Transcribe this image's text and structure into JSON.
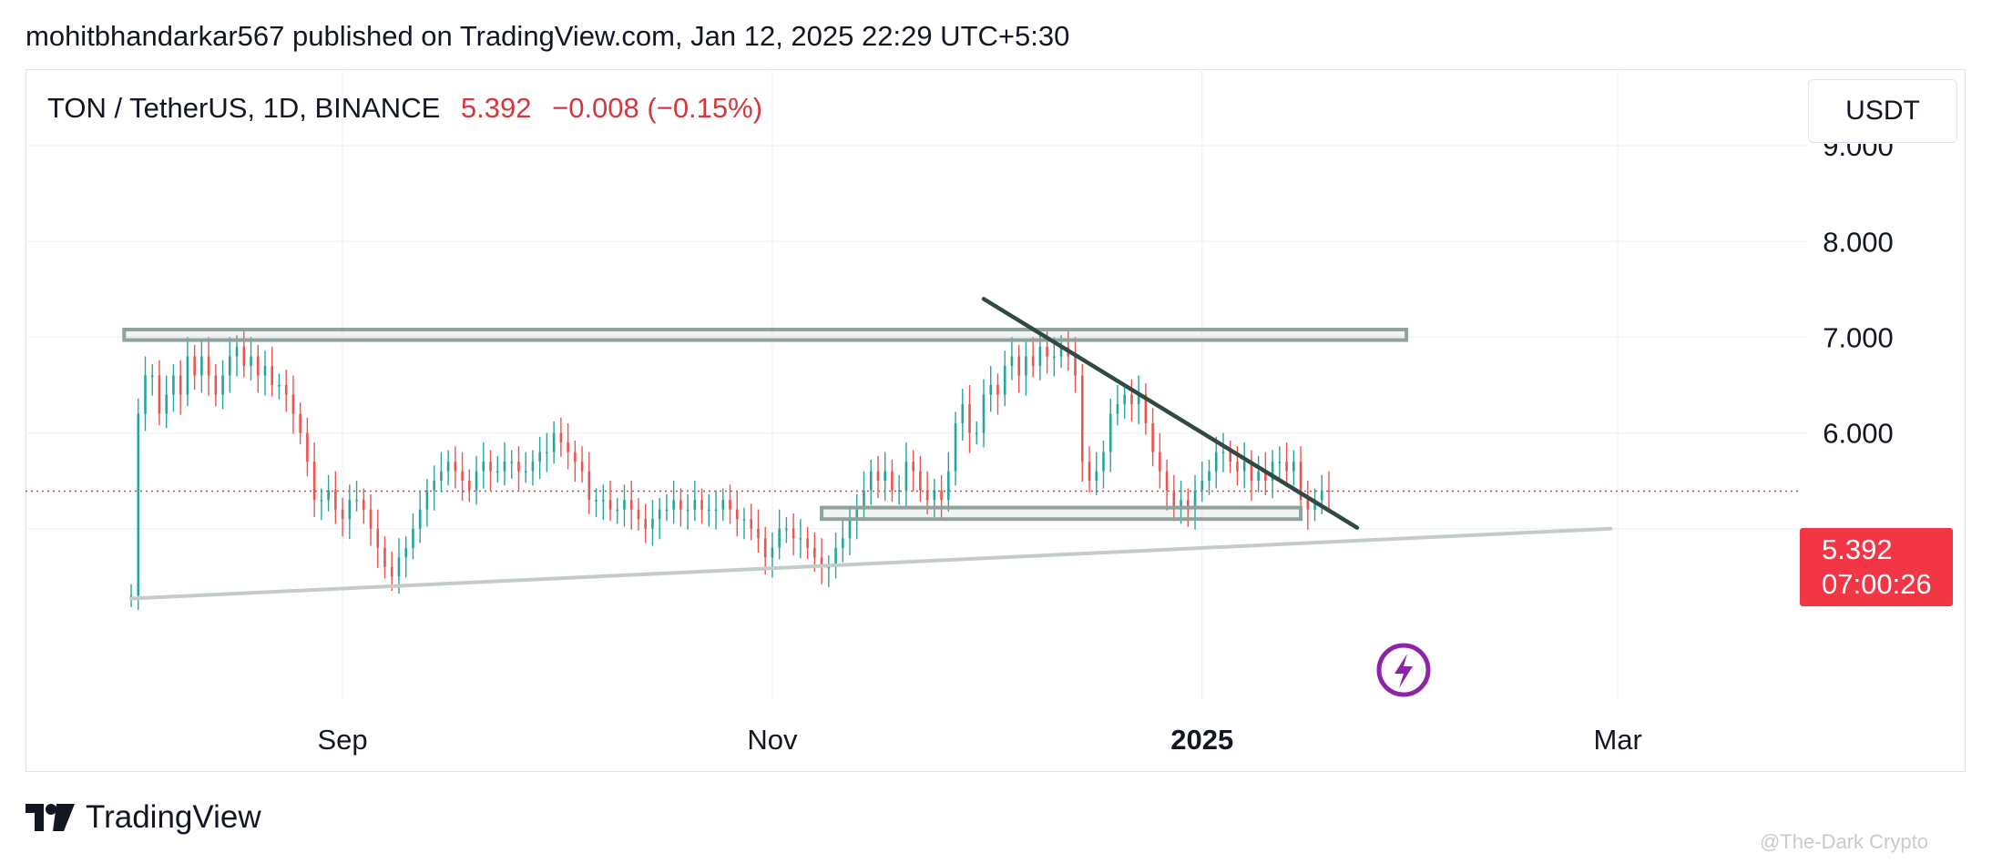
{
  "header": {
    "published_line": "mohitbhandarkar567 published on TradingView.com, Jan 12, 2025 22:29 UTC+5:30"
  },
  "symbol": {
    "name": "TON / TetherUS, 1D, BINANCE",
    "last_price": "5.392",
    "change": "−0.008 (−0.15%)"
  },
  "currency_button": "USDT",
  "price_tag": {
    "price": "5.392",
    "countdown": "07:00:26"
  },
  "brand": {
    "name": "TradingView"
  },
  "watermark": "@The-Dark Crypto",
  "colors": {
    "up": "#26a69a",
    "down": "#ef5350",
    "price_line": "#f23645",
    "zone_border": "#8fa39c",
    "trendline": "#2e4a42",
    "support_line": "#c4ccc9",
    "icon_purple": "#8e24aa"
  },
  "chart_data": {
    "type": "candlestick",
    "instrument": "TON / TetherUS",
    "timeframe": "1D",
    "exchange": "BINANCE",
    "y_axis": {
      "ticks": [
        6.0,
        7.0,
        8.0
      ],
      "partial_top_tick": "9.000",
      "range": [
        3.2,
        9.8
      ]
    },
    "x_axis": {
      "ticks": [
        {
          "date": "2024-09-01",
          "label": "Sep",
          "bold": false
        },
        {
          "date": "2024-11-01",
          "label": "Nov",
          "bold": false
        },
        {
          "date": "2025-01-01",
          "label": "2025",
          "bold": true
        },
        {
          "date": "2025-03-01",
          "label": "Mar",
          "bold": false
        }
      ],
      "range": [
        "2024-07-18",
        "2025-03-28"
      ]
    },
    "start_date": "2024-08-02",
    "last_price": 5.392,
    "closes": [
      4.3,
      6.2,
      6.6,
      6.6,
      6.2,
      6.4,
      6.6,
      6.4,
      6.8,
      6.6,
      6.8,
      6.6,
      6.4,
      6.6,
      6.8,
      6.9,
      6.7,
      6.8,
      6.6,
      6.7,
      6.5,
      6.5,
      6.4,
      6.2,
      6.0,
      5.7,
      5.3,
      5.3,
      5.4,
      5.2,
      5.1,
      5.3,
      5.3,
      5.2,
      5.0,
      4.8,
      4.6,
      4.5,
      4.7,
      4.8,
      5.0,
      5.2,
      5.4,
      5.5,
      5.6,
      5.7,
      5.6,
      5.5,
      5.4,
      5.6,
      5.7,
      5.6,
      5.6,
      5.7,
      5.7,
      5.6,
      5.6,
      5.7,
      5.8,
      5.8,
      6.0,
      5.9,
      5.8,
      5.7,
      5.6,
      5.3,
      5.3,
      5.3,
      5.2,
      5.2,
      5.3,
      5.2,
      5.1,
      5.0,
      5.1,
      5.2,
      5.2,
      5.3,
      5.2,
      5.2,
      5.3,
      5.2,
      5.2,
      5.2,
      5.3,
      5.2,
      5.1,
      5.1,
      5.0,
      4.9,
      4.7,
      4.8,
      5.0,
      5.0,
      4.9,
      4.9,
      4.8,
      4.7,
      4.6,
      4.6,
      4.8,
      4.9,
      5.1,
      5.2,
      5.4,
      5.6,
      5.5,
      5.6,
      5.4,
      5.4,
      5.7,
      5.6,
      5.4,
      5.3,
      5.4,
      5.3,
      5.6,
      6.1,
      6.3,
      6.0,
      6.0,
      6.4,
      6.5,
      6.4,
      6.7,
      6.8,
      6.6,
      6.8,
      6.7,
      6.9,
      6.8,
      6.8,
      6.9,
      6.8,
      6.6,
      5.7,
      5.5,
      5.6,
      5.8,
      6.2,
      6.3,
      6.4,
      6.3,
      6.4,
      6.1,
      5.8,
      5.6,
      5.4,
      5.2,
      5.3,
      5.2,
      5.4,
      5.5,
      5.6,
      5.8,
      5.8,
      5.7,
      5.6,
      5.7,
      5.5,
      5.6,
      5.5,
      5.7,
      5.7,
      5.6,
      5.7,
      5.3,
      5.2,
      5.3,
      5.4,
      5.392
    ],
    "drawings": [
      {
        "type": "rectangle",
        "name": "resistance-zone",
        "from": "2024-08-01",
        "to": "2025-01-30",
        "price_top": 7.08,
        "price_bottom": 6.97
      },
      {
        "type": "rectangle",
        "name": "support-zone",
        "from": "2024-11-08",
        "to": "2025-01-15",
        "price_top": 5.22,
        "price_bottom": 5.1
      },
      {
        "type": "trendline",
        "name": "descending-trendline",
        "from": {
          "date": "2024-12-01",
          "price": 7.4
        },
        "to": {
          "date": "2025-01-23",
          "price": 5.01
        }
      },
      {
        "type": "trendline",
        "name": "ascending-support-line",
        "from": {
          "date": "2024-08-02",
          "price": 4.27
        },
        "to": {
          "date": "2025-02-28",
          "price": 5.0
        }
      }
    ]
  }
}
